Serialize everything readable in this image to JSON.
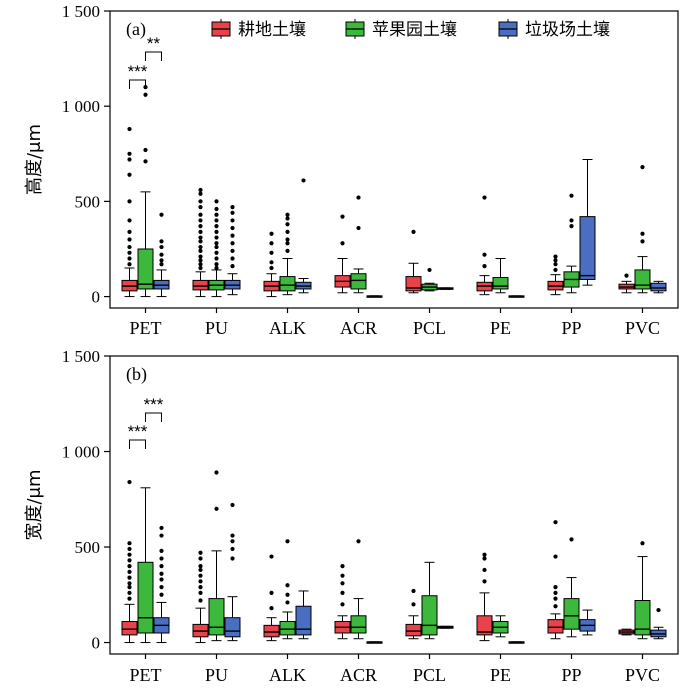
{
  "chart_data": {
    "type": "box",
    "categories": [
      "PET",
      "PU",
      "ALK",
      "ACR",
      "PCL",
      "PE",
      "PP",
      "PVC"
    ],
    "legend": {
      "position": "top-right",
      "entries": [
        {
          "name": "耕地土壤",
          "color": "#e8434a"
        },
        {
          "name": "苹果园土壤",
          "color": "#3cb93c"
        },
        {
          "name": "垃圾场土壤",
          "color": "#4a6ec2"
        }
      ]
    },
    "ticks": [
      "0",
      "500",
      "1 000",
      "1 500"
    ],
    "panels": [
      {
        "label": "(a)",
        "ylabel": "高度/μm",
        "ylim": [
          -60,
          1500
        ],
        "yticks": [
          0,
          500,
          1000,
          1500
        ],
        "significance": [
          {
            "category": "PET",
            "between": [
              0,
              1
            ],
            "text": "***"
          },
          {
            "category": "PET",
            "between": [
              1,
              2
            ],
            "text": "**"
          }
        ],
        "series": [
          {
            "name": "耕地土壤",
            "boxes": [
              {
                "q1": 30,
                "median": 55,
                "q3": 85,
                "whisker_low": 0,
                "whisker_high": 150,
                "outliers": [
                  170,
                  200,
                  230,
                  260,
                  300,
                  340,
                  400,
                  500,
                  640,
                  720,
                  750,
                  880
                ]
              },
              {
                "q1": 35,
                "median": 55,
                "q3": 85,
                "whisker_low": 0,
                "whisker_high": 130,
                "outliers": [
                  150,
                  170,
                  190,
                  210,
                  240,
                  260,
                  290,
                  310,
                  340,
                  370,
                  400,
                  430,
                  470,
                  500,
                  540,
                  560
                ]
              },
              {
                "q1": 30,
                "median": 55,
                "q3": 80,
                "whisker_low": 0,
                "whisker_high": 120,
                "outliers": [
                  150,
                  180,
                  230,
                  280,
                  330
                ]
              },
              {
                "q1": 50,
                "median": 80,
                "q3": 110,
                "whisker_low": 20,
                "whisker_high": 200,
                "outliers": [
                  280,
                  420
                ]
              },
              {
                "q1": 30,
                "median": 45,
                "q3": 105,
                "whisker_low": 20,
                "whisker_high": 175,
                "outliers": [
                  340
                ]
              },
              {
                "q1": 30,
                "median": 55,
                "q3": 75,
                "whisker_low": 10,
                "whisker_high": 110,
                "outliers": [
                  160,
                  220,
                  520
                ]
              },
              {
                "q1": 35,
                "median": 55,
                "q3": 80,
                "whisker_low": 10,
                "whisker_high": 115,
                "outliers": [
                  140,
                  170,
                  190,
                  210
                ]
              },
              {
                "q1": 40,
                "median": 50,
                "q3": 65,
                "whisker_low": 20,
                "whisker_high": 80,
                "outliers": [
                  110
                ]
              }
            ]
          },
          {
            "name": "苹果园土壤",
            "boxes": [
              {
                "q1": 40,
                "median": 65,
                "q3": 250,
                "whisker_low": 0,
                "whisker_high": 550,
                "outliers": [
                  710,
                  770,
                  1060,
                  1100
                ]
              },
              {
                "q1": 35,
                "median": 60,
                "q3": 85,
                "whisker_low": 0,
                "whisker_high": 140,
                "outliers": [
                  150,
                  170,
                  200,
                  230,
                  260,
                  280,
                  310,
                  340,
                  370,
                  400,
                  430,
                  460,
                  500
                ]
              },
              {
                "q1": 30,
                "median": 60,
                "q3": 105,
                "whisker_low": 10,
                "whisker_high": 200,
                "outliers": [
                  240,
                  280,
                  300,
                  340,
                  380,
                  410,
                  430
                ]
              },
              {
                "q1": 40,
                "median": 85,
                "q3": 120,
                "whisker_low": 20,
                "whisker_high": 145,
                "outliers": [
                  360,
                  520
                ]
              },
              {
                "q1": 35,
                "median": 50,
                "q3": 65,
                "whisker_low": 30,
                "whisker_high": 70,
                "outliers": [
                  140
                ]
              },
              {
                "q1": 40,
                "median": 55,
                "q3": 100,
                "whisker_low": 20,
                "whisker_high": 200,
                "outliers": []
              },
              {
                "q1": 50,
                "median": 90,
                "q3": 130,
                "whisker_low": 20,
                "whisker_high": 160,
                "outliers": [
                  370,
                  400,
                  530
                ]
              },
              {
                "q1": 40,
                "median": 60,
                "q3": 140,
                "whisker_low": 20,
                "whisker_high": 210,
                "outliers": [
                  290,
                  330,
                  680
                ]
              }
            ]
          },
          {
            "name": "垃圾场土壤",
            "boxes": [
              {
                "q1": 40,
                "median": 60,
                "q3": 85,
                "whisker_low": 0,
                "whisker_high": 140,
                "outliers": [
                  170,
                  190,
                  220,
                  260,
                  290,
                  430
                ]
              },
              {
                "q1": 40,
                "median": 60,
                "q3": 85,
                "whisker_low": 10,
                "whisker_high": 120,
                "outliers": [
                  160,
                  200,
                  240,
                  280,
                  320,
                  360,
                  400,
                  440,
                  470
                ]
              },
              {
                "q1": 40,
                "median": 55,
                "q3": 75,
                "whisker_low": 20,
                "whisker_high": 95,
                "outliers": [
                  610
                ]
              },
              {
                "q1": 0,
                "median": 2,
                "q3": 4,
                "whisker_low": 0,
                "whisker_high": 4,
                "outliers": []
              },
              {
                "q1": 38,
                "median": 42,
                "q3": 46,
                "whisker_low": 38,
                "whisker_high": 46,
                "outliers": []
              },
              {
                "q1": 0,
                "median": 2,
                "q3": 4,
                "whisker_low": 0,
                "whisker_high": 4,
                "outliers": []
              },
              {
                "q1": 90,
                "median": 110,
                "q3": 420,
                "whisker_low": 60,
                "whisker_high": 720,
                "outliers": []
              },
              {
                "q1": 30,
                "median": 45,
                "q3": 70,
                "whisker_low": 20,
                "whisker_high": 80,
                "outliers": []
              }
            ]
          }
        ]
      },
      {
        "label": "(b)",
        "ylabel": "宽度/μm",
        "ylim": [
          -60,
          1500
        ],
        "yticks": [
          0,
          500,
          1000,
          1500
        ],
        "significance": [
          {
            "category": "PET",
            "between": [
              0,
              1
            ],
            "text": "***"
          },
          {
            "category": "PET",
            "between": [
              1,
              2
            ],
            "text": "***"
          }
        ],
        "series": [
          {
            "name": "耕地土壤",
            "boxes": [
              {
                "q1": 40,
                "median": 70,
                "q3": 110,
                "whisker_low": 0,
                "whisker_high": 200,
                "outliers": [
                  230,
                  260,
                  290,
                  310,
                  340,
                  370,
                  400,
                  430,
                  460,
                  490,
                  520,
                  840
                ]
              },
              {
                "q1": 30,
                "median": 60,
                "q3": 95,
                "whisker_low": 0,
                "whisker_high": 180,
                "outliers": [
                  220,
                  260,
                  290,
                  320,
                  350,
                  380,
                  400,
                  440,
                  470
                ]
              },
              {
                "q1": 30,
                "median": 55,
                "q3": 90,
                "whisker_low": 10,
                "whisker_high": 130,
                "outliers": [
                  180,
                  260,
                  450
                ]
              },
              {
                "q1": 50,
                "median": 80,
                "q3": 110,
                "whisker_low": 20,
                "whisker_high": 140,
                "outliers": [
                  200,
                  260,
                  310,
                  350,
                  400
                ]
              },
              {
                "q1": 35,
                "median": 60,
                "q3": 95,
                "whisker_low": 20,
                "whisker_high": 140,
                "outliers": [
                  200,
                  270
                ]
              },
              {
                "q1": 40,
                "median": 55,
                "q3": 140,
                "whisker_low": 10,
                "whisker_high": 260,
                "outliers": [
                  320,
                  380,
                  440,
                  460
                ]
              },
              {
                "q1": 50,
                "median": 80,
                "q3": 120,
                "whisker_low": 20,
                "whisker_high": 150,
                "outliers": [
                  190,
                  230,
                  260,
                  290,
                  450,
                  630
                ]
              },
              {
                "q1": 45,
                "median": 55,
                "q3": 65,
                "whisker_low": 40,
                "whisker_high": 70,
                "outliers": []
              }
            ]
          },
          {
            "name": "苹果园土壤",
            "boxes": [
              {
                "q1": 50,
                "median": 130,
                "q3": 420,
                "whisker_low": 0,
                "whisker_high": 810,
                "outliers": []
              },
              {
                "q1": 40,
                "median": 80,
                "q3": 230,
                "whisker_low": 10,
                "whisker_high": 480,
                "outliers": [
                  700,
                  890
                ]
              },
              {
                "q1": 40,
                "median": 70,
                "q3": 110,
                "whisker_low": 20,
                "whisker_high": 160,
                "outliers": [
                  210,
                  250,
                  300,
                  530
                ]
              },
              {
                "q1": 50,
                "median": 80,
                "q3": 140,
                "whisker_low": 20,
                "whisker_high": 230,
                "outliers": [
                  530
                ]
              },
              {
                "q1": 40,
                "median": 90,
                "q3": 245,
                "whisker_low": 20,
                "whisker_high": 420,
                "outliers": []
              },
              {
                "q1": 50,
                "median": 80,
                "q3": 110,
                "whisker_low": 30,
                "whisker_high": 140,
                "outliers": []
              },
              {
                "q1": 70,
                "median": 140,
                "q3": 230,
                "whisker_low": 30,
                "whisker_high": 340,
                "outliers": [
                  540
                ]
              },
              {
                "q1": 40,
                "median": 70,
                "q3": 220,
                "whisker_low": 20,
                "whisker_high": 450,
                "outliers": [
                  520
                ]
              }
            ]
          },
          {
            "name": "垃圾场土壤",
            "boxes": [
              {
                "q1": 50,
                "median": 90,
                "q3": 130,
                "whisker_low": 0,
                "whisker_high": 210,
                "outliers": [
                  250,
                  290,
                  330,
                  360,
                  400,
                  440,
                  480,
                  560,
                  600
                ]
              },
              {
                "q1": 30,
                "median": 60,
                "q3": 130,
                "whisker_low": 10,
                "whisker_high": 240,
                "outliers": [
                  440,
                  490,
                  530,
                  560,
                  720
                ]
              },
              {
                "q1": 40,
                "median": 70,
                "q3": 190,
                "whisker_low": 20,
                "whisker_high": 270,
                "outliers": []
              },
              {
                "q1": 0,
                "median": 2,
                "q3": 4,
                "whisker_low": 0,
                "whisker_high": 4,
                "outliers": []
              },
              {
                "q1": 75,
                "median": 80,
                "q3": 85,
                "whisker_low": 75,
                "whisker_high": 85,
                "outliers": []
              },
              {
                "q1": 0,
                "median": 2,
                "q3": 4,
                "whisker_low": 0,
                "whisker_high": 4,
                "outliers": []
              },
              {
                "q1": 60,
                "median": 90,
                "q3": 120,
                "whisker_low": 40,
                "whisker_high": 170,
                "outliers": []
              },
              {
                "q1": 30,
                "median": 45,
                "q3": 65,
                "whisker_low": 20,
                "whisker_high": 80,
                "outliers": [
                  170
                ]
              }
            ]
          }
        ]
      }
    ]
  }
}
